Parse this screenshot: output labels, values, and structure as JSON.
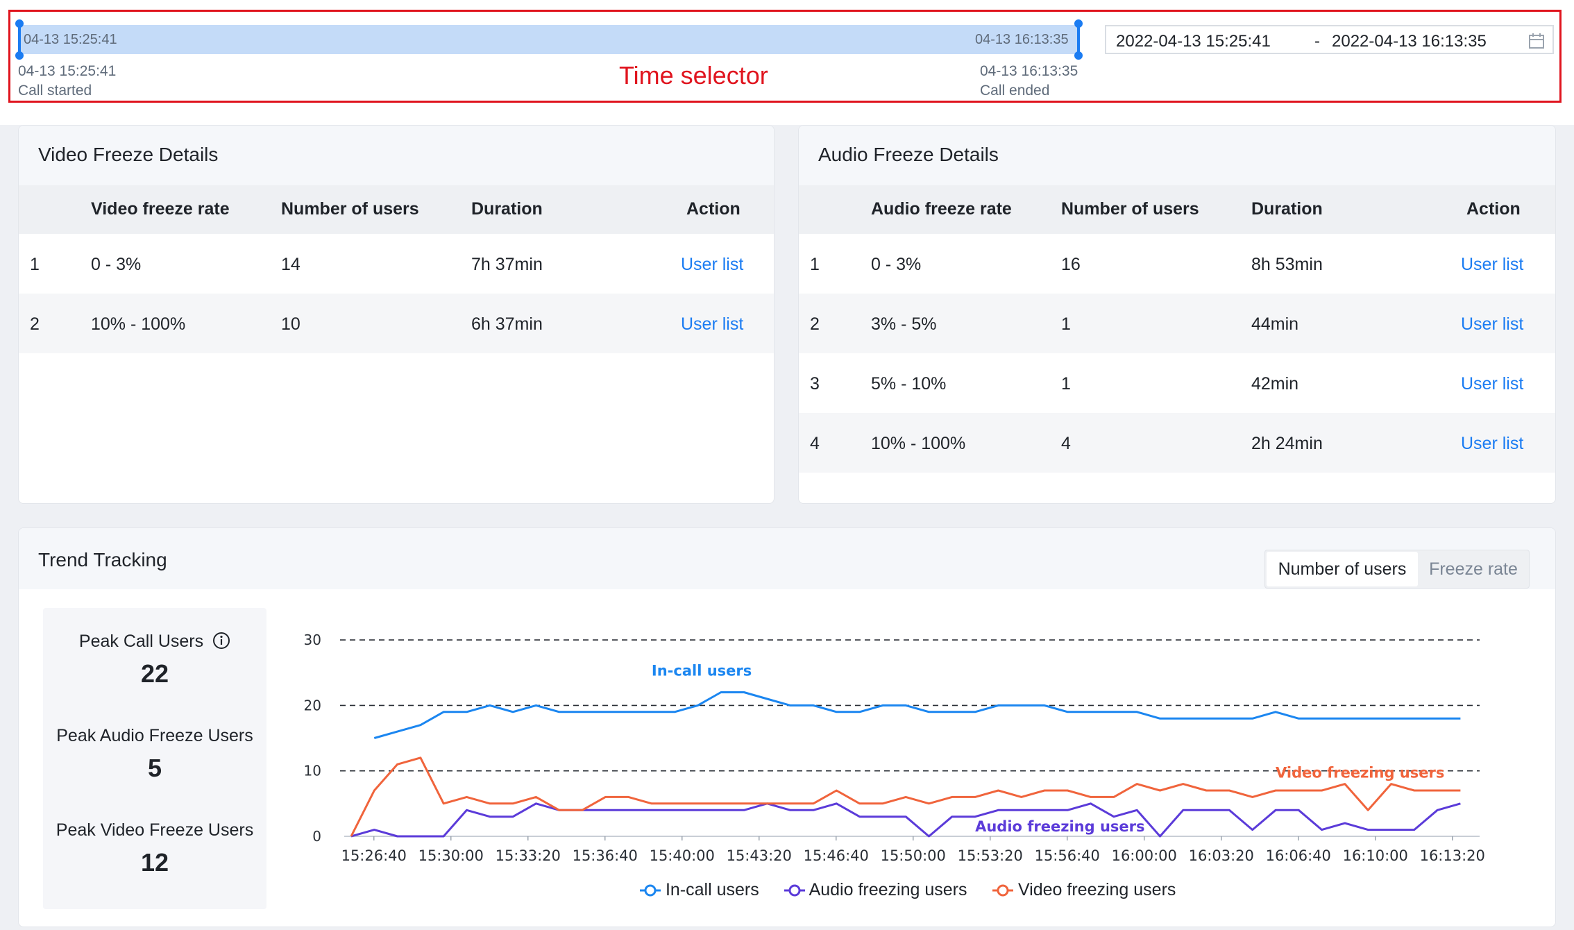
{
  "time_selector": {
    "track_start": "04-13 15:25:41",
    "track_end": "04-13 16:13:35",
    "start_time": "04-13 15:25:41",
    "start_label": "Call started",
    "end_time": "04-13 16:13:35",
    "end_label": "Call ended",
    "annotation": "Time selector",
    "range_start": "2022-04-13 15:25:41",
    "range_separator": "-",
    "range_end": "2022-04-13 16:13:35",
    "calendar_icon": "calendar-icon"
  },
  "video_freeze": {
    "title": "Video Freeze Details",
    "columns": [
      "Video freeze rate",
      "Number of users",
      "Duration",
      "Action"
    ],
    "rows": [
      {
        "index": "1",
        "rate": "0 - 3%",
        "users": "14",
        "duration": "7h 37min",
        "action": "User list"
      },
      {
        "index": "2",
        "rate": "10% - 100%",
        "users": "10",
        "duration": "6h 37min",
        "action": "User list"
      }
    ]
  },
  "audio_freeze": {
    "title": "Audio Freeze Details",
    "columns": [
      "Audio freeze rate",
      "Number of users",
      "Duration",
      "Action"
    ],
    "rows": [
      {
        "index": "1",
        "rate": "0 - 3%",
        "users": "16",
        "duration": "8h 53min",
        "action": "User list"
      },
      {
        "index": "2",
        "rate": "3% - 5%",
        "users": "1",
        "duration": "44min",
        "action": "User list"
      },
      {
        "index": "3",
        "rate": "5% - 10%",
        "users": "1",
        "duration": "42min",
        "action": "User list"
      },
      {
        "index": "4",
        "rate": "10% - 100%",
        "users": "4",
        "duration": "2h 24min",
        "action": "User list"
      }
    ]
  },
  "trend": {
    "title": "Trend Tracking",
    "toggle": {
      "active": "Number of users",
      "inactive": "Freeze rate"
    },
    "stats": [
      {
        "label": "Peak Call Users",
        "value": "22",
        "icon": "info-icon"
      },
      {
        "label": "Peak Audio Freeze Users",
        "value": "5"
      },
      {
        "label": "Peak Video Freeze Users",
        "value": "12"
      }
    ]
  },
  "colors": {
    "incall": "#1b86f0",
    "audio": "#5b3bd9",
    "video": "#f0643c",
    "link": "#1b7cf2",
    "highlight": "#e0141e"
  },
  "chart_data": {
    "type": "line",
    "ylim": [
      0,
      30
    ],
    "yticks": [
      "0",
      "10",
      "20",
      "30"
    ],
    "x_ticks": [
      "15:26:40",
      "15:30:00",
      "15:33:20",
      "15:36:40",
      "15:40:00",
      "15:43:20",
      "15:46:40",
      "15:50:00",
      "15:53:20",
      "15:56:40",
      "16:00:00",
      "16:03:20",
      "16:06:40",
      "16:10:00",
      "16:13:20"
    ],
    "x_start": "15:25:41",
    "x_end": "16:13:35",
    "x_sample_step_seconds": 60,
    "series": [
      {
        "name": "In-call users",
        "key": "incall",
        "start_index": 1,
        "values": [
          15,
          16,
          17,
          19,
          19,
          20,
          19,
          20,
          19,
          19,
          19,
          19,
          19,
          19,
          20,
          22,
          22,
          21,
          20,
          20,
          19,
          19,
          20,
          20,
          19,
          19,
          19,
          20,
          20,
          20,
          19,
          19,
          19,
          19,
          18,
          18,
          18,
          18,
          18,
          19,
          18,
          18,
          18,
          18,
          18,
          18,
          18,
          18
        ]
      },
      {
        "name": "Audio freezing users",
        "key": "audio",
        "start_index": 0,
        "values": [
          0,
          1,
          0,
          0,
          0,
          4,
          3,
          3,
          5,
          4,
          4,
          4,
          4,
          4,
          4,
          4,
          4,
          4,
          5,
          4,
          4,
          5,
          3,
          3,
          3,
          0,
          3,
          3,
          4,
          4,
          4,
          4,
          5,
          3,
          4,
          0,
          4,
          4,
          4,
          1,
          4,
          4,
          1,
          2,
          1,
          1,
          1,
          4,
          5
        ]
      },
      {
        "name": "Video freezing users",
        "key": "video",
        "start_index": 0,
        "values": [
          0,
          7,
          11,
          12,
          5,
          6,
          5,
          5,
          6,
          4,
          4,
          6,
          6,
          5,
          5,
          5,
          5,
          5,
          5,
          5,
          5,
          7,
          5,
          5,
          6,
          5,
          6,
          6,
          7,
          6,
          7,
          7,
          6,
          6,
          8,
          7,
          8,
          7,
          7,
          6,
          7,
          7,
          7,
          8,
          4,
          8,
          7,
          7,
          7
        ]
      }
    ],
    "legend": [
      "In-call users",
      "Audio freezing users",
      "Video freezing users"
    ],
    "legend_position": "bottom",
    "grid": "dashed horizontal"
  }
}
